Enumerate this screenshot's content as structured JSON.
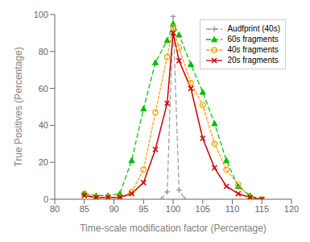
{
  "chart_data": {
    "type": "line",
    "x_label": "Time-scale modification factor (Percentage)",
    "y_label": "True Positives (Percentage)",
    "xlim": [
      80,
      120
    ],
    "ylim": [
      0,
      100
    ],
    "xticks": [
      80,
      85,
      90,
      95,
      100,
      105,
      110,
      115,
      120
    ],
    "yticks": [
      0,
      20,
      40,
      60,
      80,
      100
    ],
    "grid": false,
    "legend": "upper right",
    "series": [
      {
        "name": "Audfprint (40s)",
        "color": "#999999",
        "marker": "plus",
        "line_style": "dashed",
        "x": [
          98,
          99,
          100,
          101,
          102
        ],
        "values": [
          0,
          4,
          99,
          5,
          0
        ]
      },
      {
        "name": "60s fragments",
        "color": "#00bb00",
        "marker": "triangle",
        "line_style": "dashed",
        "x": [
          85,
          87,
          89,
          91,
          93,
          95,
          97,
          99,
          100,
          101,
          103,
          105,
          107,
          109,
          111,
          113,
          115
        ],
        "values": [
          3,
          2,
          2,
          3,
          21,
          49,
          74,
          86,
          95,
          89,
          73,
          58,
          41,
          21,
          7,
          2,
          0
        ]
      },
      {
        "name": "40s fragments",
        "color": "#ff9900",
        "marker": "circle",
        "line_style": "densely_dashed",
        "x": [
          85,
          87,
          89,
          91,
          93,
          95,
          97,
          99,
          100,
          101,
          103,
          105,
          107,
          109,
          111,
          113,
          115
        ],
        "values": [
          3,
          1,
          1,
          1,
          4,
          16,
          47,
          77,
          93,
          82,
          63,
          51,
          30,
          16,
          8,
          1,
          0
        ]
      },
      {
        "name": "20s fragments",
        "color": "#cc0000",
        "marker": "cross",
        "line_style": "solid",
        "x": [
          85,
          87,
          89,
          91,
          93,
          95,
          97,
          99,
          100,
          101,
          103,
          105,
          107,
          109,
          111,
          113,
          115
        ],
        "values": [
          2,
          1,
          1,
          1,
          3,
          9,
          27,
          52,
          90,
          75,
          60,
          33,
          17,
          7,
          3,
          1,
          0
        ]
      }
    ]
  }
}
